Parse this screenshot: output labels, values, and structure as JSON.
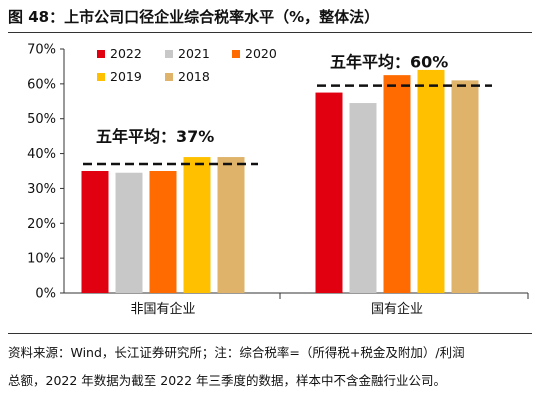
{
  "figure_title": "图 48：上市公司口径企业综合税率水平（%，整体法）",
  "source_note": {
    "line1": "资料来源：Wind，长江证券研究所；注：综合税率=（所得税+税金及附加）/利润",
    "line2": "总额，2022 年数据为截至 2022 年三季度的数据，样本中不含金融行业公司。"
  },
  "chart_data": {
    "type": "bar",
    "categories": [
      "非国有企业",
      "国有企业"
    ],
    "series": [
      {
        "name": "2022",
        "color": "#e0000f",
        "values": [
          35,
          57.5
        ]
      },
      {
        "name": "2021",
        "color": "#c8c8c8",
        "values": [
          34.5,
          54.5
        ]
      },
      {
        "name": "2020",
        "color": "#ff6b00",
        "values": [
          35,
          62.5
        ]
      },
      {
        "name": "2019",
        "color": "#ffc000",
        "values": [
          39,
          64
        ]
      },
      {
        "name": "2018",
        "color": "#dfb36a",
        "values": [
          39,
          61
        ]
      }
    ],
    "yticks": [
      "0%",
      "10%",
      "20%",
      "30%",
      "40%",
      "50%",
      "60%",
      "70%"
    ],
    "ylim": [
      0,
      70
    ],
    "grid": false,
    "legend": "top-left",
    "averages": [
      {
        "category": "非国有企业",
        "value": 37,
        "label": "五年平均：37%"
      },
      {
        "category": "国有企业",
        "value": 59.5,
        "label": "五年平均：60%"
      }
    ]
  }
}
